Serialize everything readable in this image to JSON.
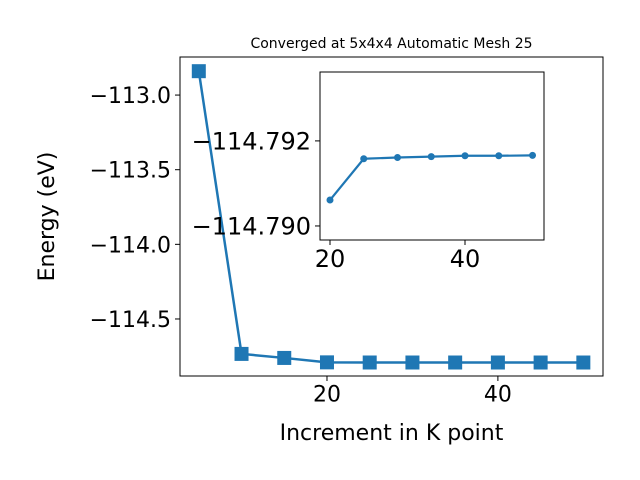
{
  "chart_data": [
    {
      "type": "line",
      "title": "Converged at 5x4x4 Automatic Mesh 25",
      "x_label": "Increment in K point",
      "y_label": "Energy (eV)",
      "x": [
        5,
        10,
        15,
        20,
        25,
        30,
        35,
        40,
        45,
        50
      ],
      "series": [
        {
          "color": "#1f77b4",
          "marker": "square",
          "values": [
            -112.84,
            -114.734,
            -114.761,
            -114.79061,
            -114.79158,
            -114.79161,
            -114.79163,
            -114.79165,
            -114.79165,
            -114.79166
          ]
        }
      ],
      "xlim": [
        2.8,
        52.3
      ],
      "ylim": [
        -114.882,
        -112.745
      ],
      "xticks": [
        20,
        40
      ],
      "yticks": [
        {
          "value": -113.0,
          "label": "−113.0"
        },
        {
          "value": -113.5,
          "label": "−113.5"
        },
        {
          "value": -114.0,
          "label": "−114.0"
        },
        {
          "value": -114.5,
          "label": "−114.5"
        }
      ]
    },
    {
      "type": "line",
      "x": [
        20,
        25,
        30,
        35,
        40,
        45,
        50
      ],
      "series": [
        {
          "color": "#1f77b4",
          "marker": "circle",
          "values": [
            -114.79061,
            -114.79158,
            -114.79161,
            -114.79163,
            -114.79165,
            -114.79165,
            -114.79166
          ]
        }
      ],
      "xlim": [
        18.52,
        51.7
      ],
      "ylim": [
        -114.78967,
        -114.79362
      ],
      "xticks": [
        20,
        40
      ],
      "yticks": [
        {
          "value": -114.792,
          "label": "−114.792"
        },
        {
          "value": -114.79,
          "label": "−114.790"
        }
      ]
    }
  ]
}
